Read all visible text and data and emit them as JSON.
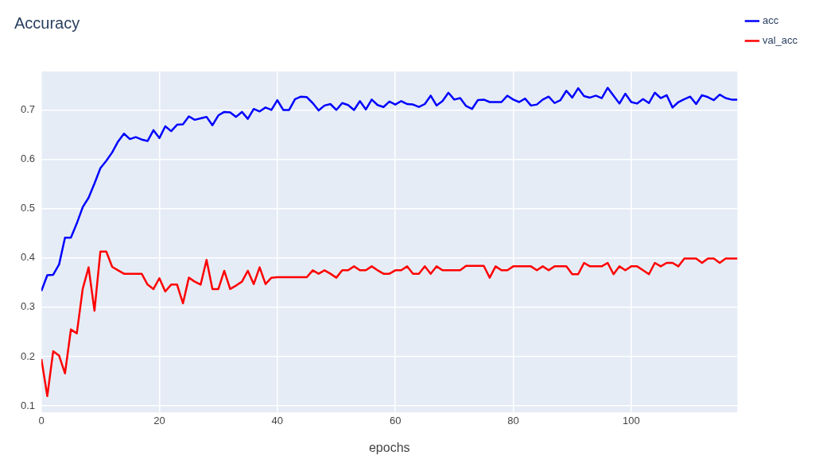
{
  "chart_data": {
    "type": "line",
    "title": "Accuracy",
    "xlabel": "epochs",
    "x": [
      0,
      1,
      2,
      3,
      4,
      5,
      6,
      7,
      8,
      9,
      10,
      11,
      12,
      13,
      14,
      15,
      16,
      17,
      18,
      19,
      20,
      21,
      22,
      23,
      24,
      25,
      26,
      27,
      28,
      29,
      30,
      31,
      32,
      33,
      34,
      35,
      36,
      37,
      38,
      39,
      40,
      41,
      42,
      43,
      44,
      45,
      46,
      47,
      48,
      49,
      50,
      51,
      52,
      53,
      54,
      55,
      56,
      57,
      58,
      59,
      60,
      61,
      62,
      63,
      64,
      65,
      66,
      67,
      68,
      69,
      70,
      71,
      72,
      73,
      74,
      75,
      76,
      77,
      78,
      79,
      80,
      81,
      82,
      83,
      84,
      85,
      86,
      87,
      88,
      89,
      90,
      91,
      92,
      93,
      94,
      95,
      96,
      97,
      98,
      99,
      100,
      101,
      102,
      103,
      104,
      105,
      106,
      107,
      108,
      109,
      110,
      111,
      112,
      113,
      114,
      115,
      116,
      117,
      118
    ],
    "series": [
      {
        "name": "acc",
        "color": "#0000ff",
        "values": [
          0.333,
          0.365,
          0.366,
          0.387,
          0.441,
          0.441,
          0.47,
          0.503,
          0.522,
          0.551,
          0.582,
          0.597,
          0.614,
          0.636,
          0.652,
          0.641,
          0.645,
          0.64,
          0.637,
          0.659,
          0.643,
          0.667,
          0.657,
          0.67,
          0.671,
          0.687,
          0.68,
          0.683,
          0.686,
          0.669,
          0.689,
          0.696,
          0.695,
          0.686,
          0.696,
          0.682,
          0.702,
          0.697,
          0.705,
          0.7,
          0.72,
          0.7,
          0.7,
          0.722,
          0.727,
          0.726,
          0.714,
          0.699,
          0.709,
          0.712,
          0.7,
          0.714,
          0.71,
          0.7,
          0.718,
          0.701,
          0.721,
          0.71,
          0.706,
          0.717,
          0.711,
          0.718,
          0.712,
          0.711,
          0.706,
          0.712,
          0.729,
          0.709,
          0.718,
          0.735,
          0.721,
          0.724,
          0.708,
          0.702,
          0.72,
          0.721,
          0.716,
          0.716,
          0.716,
          0.729,
          0.721,
          0.716,
          0.723,
          0.709,
          0.711,
          0.721,
          0.727,
          0.714,
          0.72,
          0.739,
          0.725,
          0.744,
          0.728,
          0.725,
          0.729,
          0.724,
          0.745,
          0.729,
          0.713,
          0.733,
          0.716,
          0.713,
          0.722,
          0.714,
          0.735,
          0.724,
          0.73,
          0.705,
          0.716,
          0.722,
          0.727,
          0.712,
          0.73,
          0.726,
          0.72,
          0.731,
          0.724,
          0.721,
          0.721
        ]
      },
      {
        "name": "val_acc",
        "color": "#ff0000",
        "values": [
          0.195,
          0.12,
          0.211,
          0.202,
          0.166,
          0.255,
          0.247,
          0.337,
          0.381,
          0.293,
          0.413,
          0.413,
          0.382,
          0.375,
          0.368,
          0.368,
          0.368,
          0.368,
          0.346,
          0.337,
          0.359,
          0.332,
          0.346,
          0.346,
          0.308,
          0.36,
          0.352,
          0.346,
          0.396,
          0.337,
          0.337,
          0.374,
          0.337,
          0.344,
          0.352,
          0.374,
          0.347,
          0.381,
          0.347,
          0.36,
          0.361,
          0.361,
          0.361,
          0.361,
          0.361,
          0.361,
          0.375,
          0.368,
          0.375,
          0.368,
          0.36,
          0.375,
          0.375,
          0.383,
          0.375,
          0.375,
          0.383,
          0.375,
          0.368,
          0.368,
          0.375,
          0.375,
          0.383,
          0.368,
          0.368,
          0.383,
          0.368,
          0.383,
          0.375,
          0.375,
          0.375,
          0.375,
          0.384,
          0.384,
          0.384,
          0.384,
          0.36,
          0.383,
          0.375,
          0.375,
          0.383,
          0.383,
          0.383,
          0.383,
          0.375,
          0.383,
          0.375,
          0.383,
          0.383,
          0.383,
          0.367,
          0.367,
          0.39,
          0.383,
          0.383,
          0.383,
          0.39,
          0.367,
          0.383,
          0.375,
          0.383,
          0.383,
          0.375,
          0.367,
          0.39,
          0.383,
          0.39,
          0.39,
          0.383,
          0.399,
          0.399,
          0.399,
          0.39,
          0.399,
          0.399,
          0.39,
          0.399,
          0.399,
          0.399
        ]
      }
    ],
    "xlim": [
      0,
      118
    ],
    "xticks": [
      0,
      20,
      40,
      60,
      80,
      100
    ],
    "ylim": [
      0.087,
      0.778
    ],
    "yticks": [
      0.1,
      0.2,
      0.3,
      0.4,
      0.5,
      0.6,
      0.7
    ],
    "grid": true,
    "legend": "top right"
  }
}
